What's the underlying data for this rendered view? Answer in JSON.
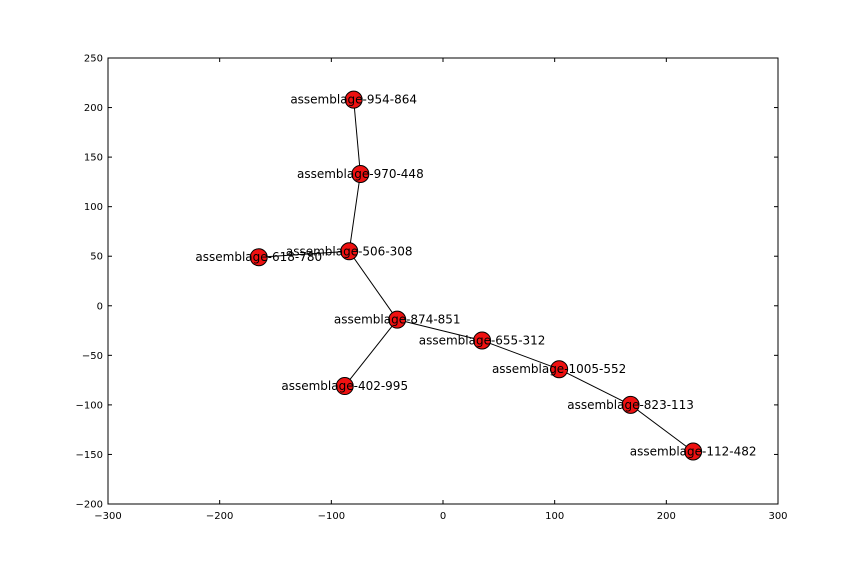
{
  "chart_data": {
    "type": "scatter",
    "title": "",
    "xlabel": "",
    "ylabel": "",
    "xlim": [
      -300,
      300
    ],
    "ylim": [
      -200,
      250
    ],
    "xticks": [
      -300,
      -200,
      -100,
      0,
      100,
      200,
      300
    ],
    "yticks": [
      -200,
      -150,
      -100,
      -50,
      0,
      50,
      100,
      150,
      200,
      250
    ],
    "xtick_labels": [
      "−300",
      "−200",
      "−100",
      "0",
      "100",
      "200",
      "300"
    ],
    "ytick_labels": [
      "−200",
      "−150",
      "−100",
      "−50",
      "0",
      "50",
      "100",
      "150",
      "200",
      "250"
    ],
    "grid": false,
    "node_color": "#ee1111",
    "edge_color": "#000000",
    "nodes": [
      {
        "id": "assemblage-954-864",
        "x": -80,
        "y": 208
      },
      {
        "id": "assemblage-970-448",
        "x": -74,
        "y": 133
      },
      {
        "id": "assemblage-506-308",
        "x": -84,
        "y": 55
      },
      {
        "id": "assemblage-618-780",
        "x": -165,
        "y": 49
      },
      {
        "id": "assemblage-874-851",
        "x": -41,
        "y": -14
      },
      {
        "id": "assemblage-402-995",
        "x": -88,
        "y": -81
      },
      {
        "id": "assemblage-655-312",
        "x": 35,
        "y": -35
      },
      {
        "id": "assemblage-1005-552",
        "x": 104,
        "y": -64
      },
      {
        "id": "assemblage-823-113",
        "x": 168,
        "y": -100
      },
      {
        "id": "assemblage-112-482",
        "x": 224,
        "y": -147
      }
    ],
    "edges": [
      [
        "assemblage-954-864",
        "assemblage-970-448"
      ],
      [
        "assemblage-970-448",
        "assemblage-506-308"
      ],
      [
        "assemblage-506-308",
        "assemblage-618-780"
      ],
      [
        "assemblage-506-308",
        "assemblage-874-851"
      ],
      [
        "assemblage-874-851",
        "assemblage-402-995"
      ],
      [
        "assemblage-874-851",
        "assemblage-655-312"
      ],
      [
        "assemblage-655-312",
        "assemblage-1005-552"
      ],
      [
        "assemblage-1005-552",
        "assemblage-823-113"
      ],
      [
        "assemblage-823-113",
        "assemblage-112-482"
      ]
    ]
  }
}
